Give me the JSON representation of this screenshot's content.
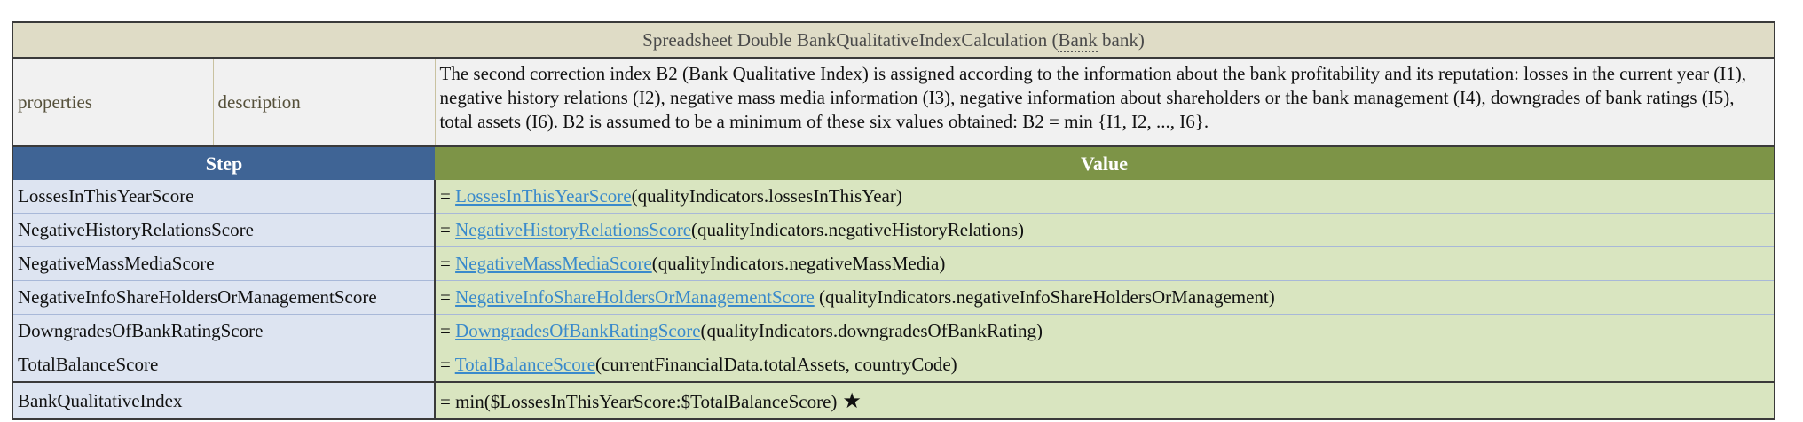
{
  "header": {
    "title_prefix": "Spreadsheet Double BankQualitativeIndexCalculation (",
    "type_ref": "Bank",
    "title_suffix": " bank)"
  },
  "properties": {
    "label": "properties",
    "description_label": "description",
    "description_text": "The second correction index B2 (Bank Qualitative Index) is assigned according to the information about the bank profitability and its reputation: losses in the current year (I1), negative history relations (I2), negative mass media information (I3), negative information about shareholders or the bank management (I4), downgrades of bank ratings (I5), total assets (I6). B2 is assumed to be a minimum of these six values obtained: B2 = min {I1, I2, ..., I6}."
  },
  "columns": {
    "step": "Step",
    "value": "Value"
  },
  "rows": [
    {
      "step": "LossesInThisYearScore",
      "prefix": "= ",
      "fn": "LossesInThisYearScore",
      "args": "(qualityIndicators.lossesInThisYear)"
    },
    {
      "step": "NegativeHistoryRelationsScore",
      "prefix": "= ",
      "fn": "NegativeHistoryRelationsScore",
      "args": "(qualityIndicators.negativeHistoryRelations)"
    },
    {
      "step": "NegativeMassMediaScore",
      "prefix": "= ",
      "fn": "NegativeMassMediaScore",
      "args": "(qualityIndicators.negativeMassMedia)"
    },
    {
      "step": "NegativeInfoShareHoldersOrManagementScore",
      "prefix": "= ",
      "fn": "NegativeInfoShareHoldersOrManagementScore",
      "args": " (qualityIndicators.negativeInfoShareHoldersOrManagement)"
    },
    {
      "step": "DowngradesOfBankRatingScore",
      "prefix": "= ",
      "fn": "DowngradesOfBankRatingScore",
      "args": "(qualityIndicators.downgradesOfBankRating)"
    },
    {
      "step": "TotalBalanceScore",
      "prefix": "= ",
      "fn": "TotalBalanceScore",
      "args": "(currentFinancialData.totalAssets, countryCode)"
    }
  ],
  "result": {
    "step": "BankQualitativeIndex",
    "formula": "= min($LossesInThisYearScore:$TotalBalanceScore)",
    "star": "★"
  }
}
